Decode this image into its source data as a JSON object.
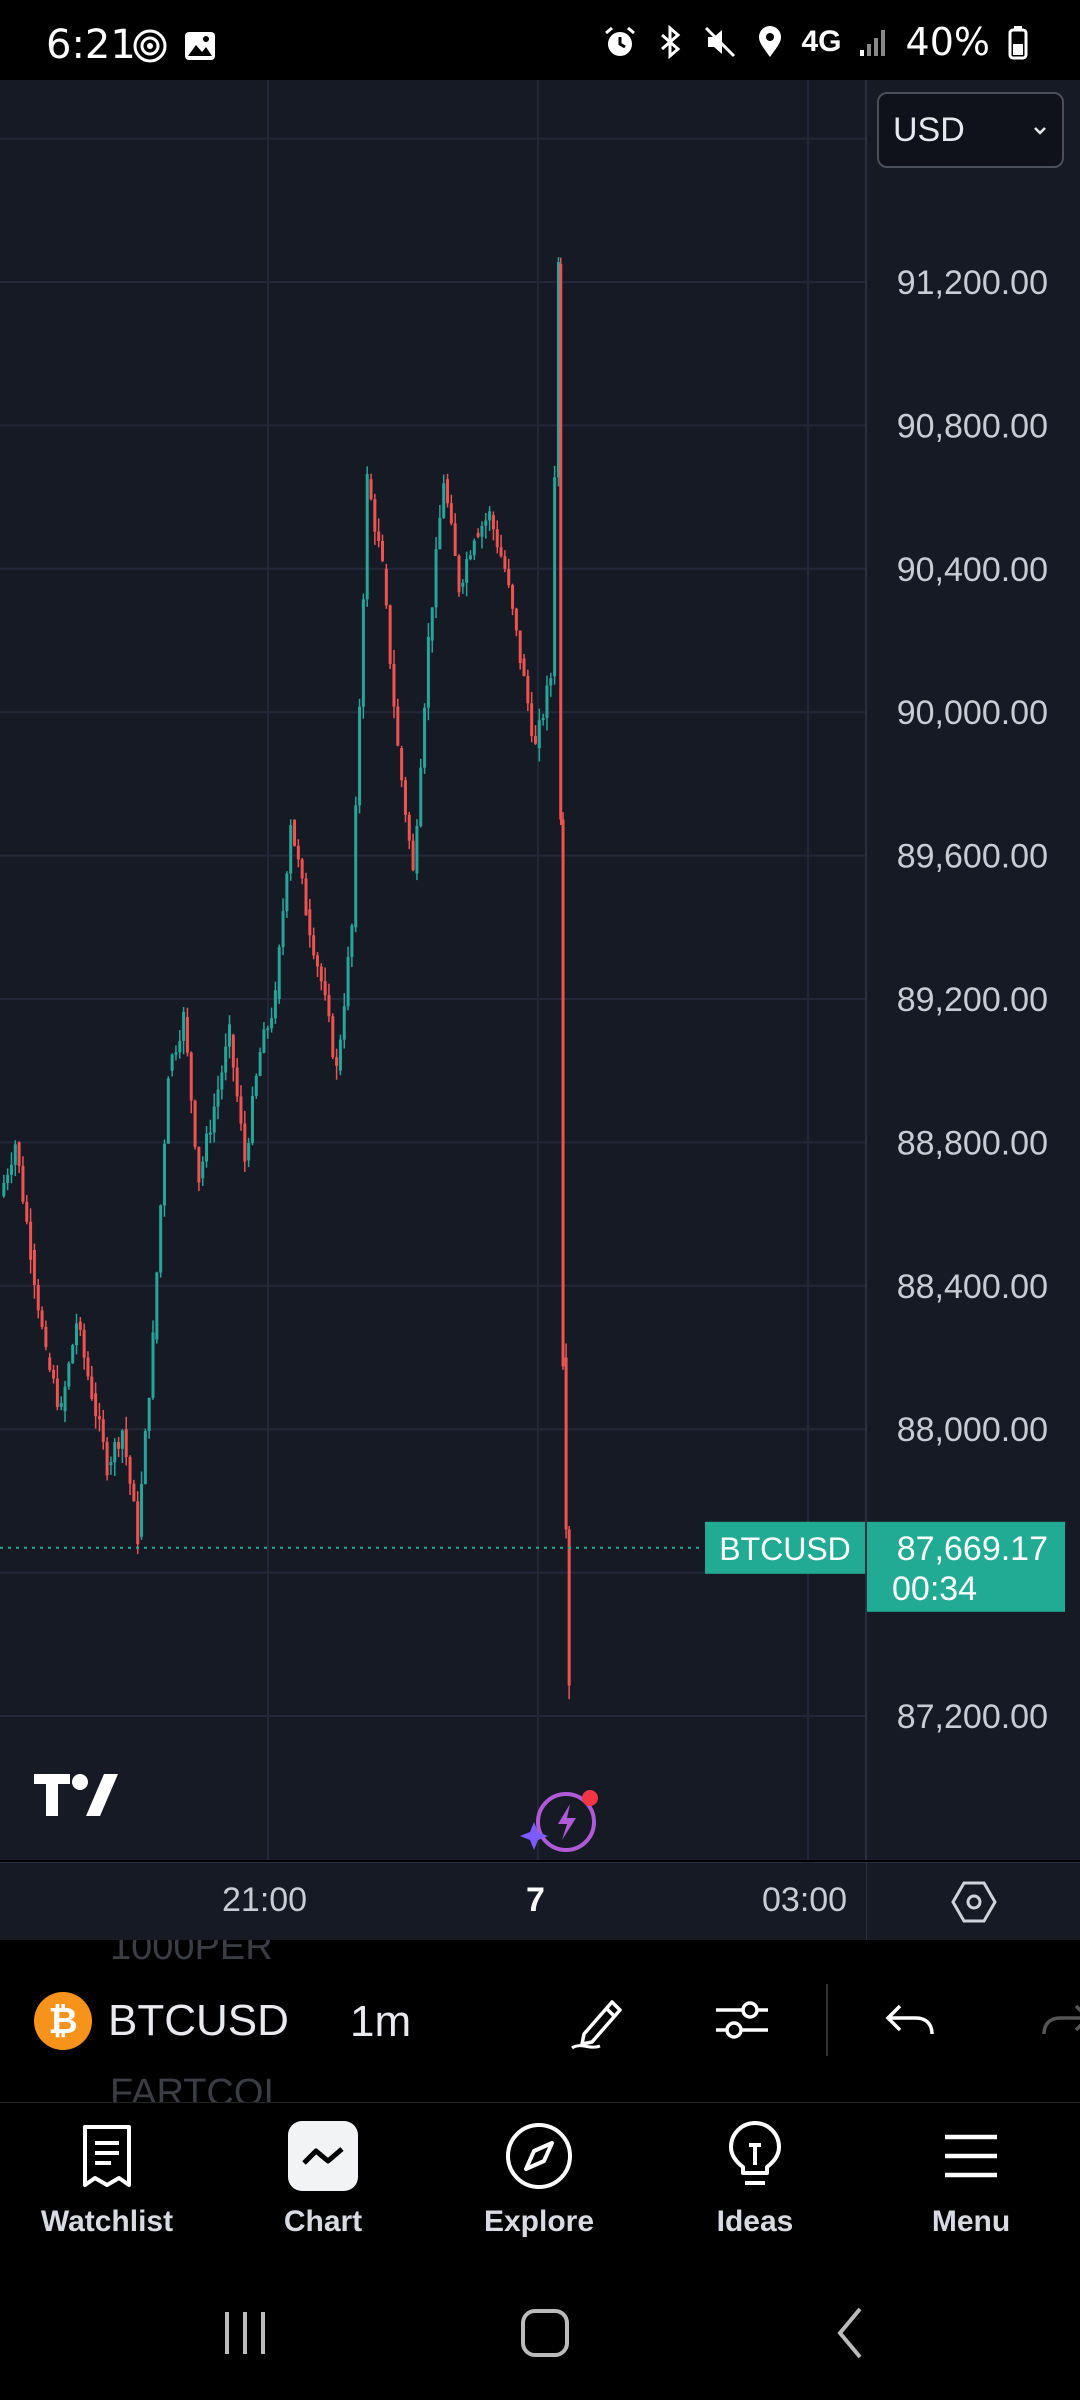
{
  "status_bar": {
    "time": "6:21",
    "network": "4G",
    "battery": "40%",
    "icons": [
      "hotspot-icon",
      "gallery-icon",
      "alarm-icon",
      "bluetooth-icon",
      "mute-icon",
      "location-icon",
      "signal-icon",
      "battery-icon"
    ]
  },
  "header": {
    "currency": "USD"
  },
  "chart_data": {
    "type": "candlestick",
    "symbol": "BTCUSD",
    "interval": "1m",
    "price_ticks": [
      "91,200.00",
      "90,800.00",
      "90,400.00",
      "90,000.00",
      "89,600.00",
      "89,200.00",
      "88,800.00",
      "88,400.00",
      "88,000.00",
      "87,200.00"
    ],
    "price_values": [
      91200,
      90800,
      90400,
      90000,
      89600,
      89200,
      88800,
      88400,
      88000,
      87200
    ],
    "time_ticks": [
      "21:00",
      "7",
      "03:00"
    ],
    "last_price": "87,669.17",
    "countdown": "00:34",
    "last_price_label": "BTCUSD",
    "price_line": [
      [
        0,
        88650
      ],
      [
        10,
        88800
      ],
      [
        20,
        88500
      ],
      [
        30,
        88200
      ],
      [
        40,
        88050
      ],
      [
        50,
        88300
      ],
      [
        60,
        88100
      ],
      [
        70,
        87900
      ],
      [
        80,
        88000
      ],
      [
        90,
        87700
      ],
      [
        100,
        88250
      ],
      [
        110,
        89000
      ],
      [
        120,
        89150
      ],
      [
        130,
        88700
      ],
      [
        140,
        88900
      ],
      [
        150,
        89100
      ],
      [
        160,
        88750
      ],
      [
        170,
        89050
      ],
      [
        180,
        89200
      ],
      [
        190,
        89700
      ],
      [
        200,
        89450
      ],
      [
        210,
        89250
      ],
      [
        220,
        89000
      ],
      [
        230,
        89400
      ],
      [
        240,
        90650
      ],
      [
        250,
        90400
      ],
      [
        260,
        89900
      ],
      [
        270,
        89550
      ],
      [
        280,
        90200
      ],
      [
        290,
        90650
      ],
      [
        300,
        90350
      ],
      [
        310,
        90500
      ],
      [
        320,
        90550
      ],
      [
        330,
        90400
      ],
      [
        340,
        90150
      ],
      [
        350,
        89900
      ],
      [
        360,
        90100
      ],
      [
        365,
        91250
      ],
      [
        368,
        88200
      ],
      [
        372,
        87300
      ]
    ],
    "colors": {
      "up": "#26a69a",
      "down": "#ef5350",
      "last_price_bg": "#22ab94",
      "background": "#161a25",
      "grid": "#232838"
    }
  },
  "toolbar": {
    "ghost_above": "1000PER",
    "ghost_below": "FARTCOI",
    "symbol": "BTCUSD",
    "interval": "1m",
    "tools": [
      "draw-icon",
      "indicators-icon",
      "undo-icon",
      "redo-icon"
    ]
  },
  "nav": {
    "items": [
      {
        "label": "Watchlist",
        "icon": "watchlist-icon"
      },
      {
        "label": "Chart",
        "icon": "chart-icon"
      },
      {
        "label": "Explore",
        "icon": "explore-icon"
      },
      {
        "label": "Ideas",
        "icon": "ideas-icon"
      },
      {
        "label": "Menu",
        "icon": "menu-icon"
      }
    ]
  }
}
